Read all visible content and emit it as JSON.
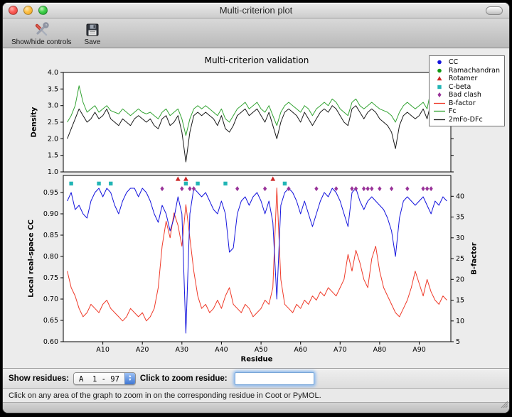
{
  "window": {
    "title": "Multi-criterion plot"
  },
  "toolbar": {
    "items": [
      {
        "label": "Show/hide controls",
        "icon": "tools-icon"
      },
      {
        "label": "Save",
        "icon": "save-icon"
      }
    ]
  },
  "chart_data": {
    "type": "line",
    "title": "Multi-criterion validation",
    "x": {
      "label": "Residue",
      "lim": [
        0,
        98
      ],
      "residue_range": [
        1,
        97
      ],
      "ticks": [
        {
          "v": 10,
          "t": "A10"
        },
        {
          "v": 20,
          "t": "A20"
        },
        {
          "v": 30,
          "t": "A30"
        },
        {
          "v": 40,
          "t": "A40"
        },
        {
          "v": 50,
          "t": "A50"
        },
        {
          "v": 60,
          "t": "A60"
        },
        {
          "v": 70,
          "t": "A70"
        },
        {
          "v": 80,
          "t": "A80"
        },
        {
          "v": 90,
          "t": "A90"
        }
      ]
    },
    "top": {
      "ylabel": "Density",
      "ylim": [
        1.0,
        4.0
      ],
      "yticks": [
        {
          "v": 1.0,
          "t": "1.0"
        },
        {
          "v": 1.5,
          "t": "1.5"
        },
        {
          "v": 2.0,
          "t": "2.0"
        },
        {
          "v": 2.5,
          "t": "2.5"
        },
        {
          "v": 3.0,
          "t": "3.0"
        },
        {
          "v": 3.5,
          "t": "3.5"
        },
        {
          "v": 4.0,
          "t": "4.0"
        }
      ],
      "series": [
        {
          "name": "Fc",
          "color": "#33a333",
          "values": [
            2.5,
            2.7,
            3.0,
            3.6,
            3.1,
            2.8,
            2.9,
            3.0,
            2.8,
            2.9,
            3.0,
            2.85,
            2.8,
            2.75,
            2.9,
            2.8,
            2.7,
            2.8,
            2.9,
            2.8,
            2.75,
            2.8,
            2.7,
            2.6,
            2.8,
            2.9,
            2.7,
            2.8,
            2.9,
            2.6,
            2.1,
            2.6,
            2.9,
            3.0,
            2.9,
            3.0,
            2.9,
            2.8,
            2.7,
            2.9,
            2.6,
            2.5,
            2.7,
            2.9,
            3.0,
            3.1,
            2.9,
            3.0,
            3.1,
            2.9,
            2.8,
            3.0,
            2.7,
            2.4,
            2.8,
            3.0,
            3.1,
            3.0,
            2.9,
            2.8,
            3.0,
            2.9,
            2.7,
            2.9,
            3.0,
            3.1,
            3.0,
            3.2,
            3.1,
            2.9,
            2.8,
            2.7,
            3.1,
            3.2,
            3.0,
            2.9,
            3.0,
            3.1,
            3.0,
            2.9,
            2.85,
            2.8,
            2.7,
            2.5,
            2.8,
            3.0,
            3.1,
            3.0,
            2.9,
            3.0,
            3.1,
            2.9,
            3.5,
            3.2,
            2.9,
            3.3,
            3.0
          ]
        },
        {
          "name": "2mFo-DFc",
          "color": "#1a1a1a",
          "values": [
            2.0,
            2.3,
            2.6,
            2.9,
            2.7,
            2.5,
            2.6,
            2.8,
            2.6,
            2.7,
            2.9,
            2.6,
            2.5,
            2.4,
            2.6,
            2.5,
            2.4,
            2.6,
            2.7,
            2.6,
            2.5,
            2.6,
            2.4,
            2.3,
            2.6,
            2.7,
            2.4,
            2.5,
            2.7,
            2.2,
            1.3,
            2.2,
            2.7,
            2.8,
            2.7,
            2.8,
            2.7,
            2.6,
            2.4,
            2.7,
            2.3,
            2.2,
            2.4,
            2.7,
            2.8,
            2.9,
            2.7,
            2.8,
            2.9,
            2.7,
            2.5,
            2.8,
            2.4,
            2.0,
            2.5,
            2.8,
            2.9,
            2.8,
            2.7,
            2.5,
            2.8,
            2.6,
            2.4,
            2.6,
            2.8,
            2.9,
            2.8,
            3.0,
            2.9,
            2.7,
            2.5,
            2.4,
            2.9,
            3.0,
            2.8,
            2.6,
            2.8,
            2.9,
            2.8,
            2.6,
            2.5,
            2.4,
            2.2,
            1.7,
            2.4,
            2.7,
            2.8,
            2.7,
            2.6,
            2.7,
            2.9,
            2.6,
            3.1,
            2.8,
            2.5,
            3.0,
            2.7
          ]
        }
      ]
    },
    "bottom": {
      "ylabel_left": "Local real-space CC",
      "cc_lim": [
        0.6,
        0.99
      ],
      "cc_ticks": [
        {
          "v": 0.6,
          "t": "0.60"
        },
        {
          "v": 0.65,
          "t": "0.65"
        },
        {
          "v": 0.7,
          "t": "0.70"
        },
        {
          "v": 0.75,
          "t": "0.75"
        },
        {
          "v": 0.8,
          "t": "0.80"
        },
        {
          "v": 0.85,
          "t": "0.85"
        },
        {
          "v": 0.9,
          "t": "0.90"
        },
        {
          "v": 0.95,
          "t": "0.95"
        }
      ],
      "ylabel_right": "B-factor",
      "b_lim": [
        5,
        45
      ],
      "b_ticks": [
        {
          "v": 5,
          "t": "5"
        },
        {
          "v": 10,
          "t": "10"
        },
        {
          "v": 15,
          "t": "15"
        },
        {
          "v": 20,
          "t": "20"
        },
        {
          "v": 25,
          "t": "25"
        },
        {
          "v": 30,
          "t": "30"
        },
        {
          "v": 35,
          "t": "35"
        },
        {
          "v": 40,
          "t": "40"
        }
      ],
      "series": [
        {
          "name": "B-factor",
          "axis": "right",
          "color": "#ef3b2a",
          "values": [
            22,
            18,
            16,
            13,
            11,
            12,
            14,
            13,
            12,
            14,
            15,
            13,
            12,
            11,
            10,
            11,
            13,
            12,
            11,
            12,
            10,
            11,
            13,
            18,
            28,
            34,
            30,
            36,
            33,
            28,
            38,
            30,
            22,
            16,
            13,
            14,
            12,
            13,
            15,
            13,
            16,
            18,
            14,
            13,
            12,
            14,
            13,
            11,
            12,
            13,
            15,
            14,
            18,
            42,
            20,
            14,
            13,
            12,
            14,
            13,
            15,
            14,
            16,
            15,
            17,
            16,
            18,
            17,
            16,
            18,
            20,
            26,
            22,
            27,
            24,
            20,
            18,
            25,
            28,
            22,
            18,
            16,
            14,
            12,
            11,
            13,
            15,
            18,
            22,
            19,
            16,
            20,
            17,
            15,
            14,
            16,
            15
          ]
        },
        {
          "name": "CC",
          "axis": "left",
          "color": "#1515dd",
          "values": [
            0.93,
            0.95,
            0.91,
            0.92,
            0.9,
            0.89,
            0.93,
            0.95,
            0.96,
            0.94,
            0.96,
            0.95,
            0.92,
            0.9,
            0.93,
            0.95,
            0.96,
            0.96,
            0.94,
            0.96,
            0.95,
            0.93,
            0.9,
            0.88,
            0.92,
            0.9,
            0.86,
            0.89,
            0.94,
            0.9,
            0.62,
            0.9,
            0.96,
            0.95,
            0.94,
            0.95,
            0.93,
            0.91,
            0.9,
            0.93,
            0.9,
            0.81,
            0.82,
            0.9,
            0.93,
            0.94,
            0.92,
            0.94,
            0.95,
            0.93,
            0.9,
            0.93,
            0.88,
            0.7,
            0.92,
            0.95,
            0.96,
            0.95,
            0.93,
            0.9,
            0.93,
            0.9,
            0.87,
            0.9,
            0.93,
            0.95,
            0.94,
            0.96,
            0.95,
            0.93,
            0.9,
            0.87,
            0.95,
            0.96,
            0.93,
            0.91,
            0.93,
            0.94,
            0.93,
            0.92,
            0.91,
            0.89,
            0.86,
            0.8,
            0.89,
            0.93,
            0.94,
            0.93,
            0.92,
            0.93,
            0.94,
            0.92,
            0.9,
            0.93,
            0.92,
            0.94,
            0.93
          ]
        }
      ],
      "markers": [
        {
          "name": "Ramachandran",
          "shape": "circle",
          "color": "#119911",
          "y": 0.982,
          "residues": []
        },
        {
          "name": "Rotamer",
          "shape": "triangle",
          "color": "#cc2525",
          "y": 0.982,
          "residues": [
            29,
            31,
            53
          ]
        },
        {
          "name": "C-beta",
          "shape": "square",
          "color": "#22b5b5",
          "y": 0.971,
          "residues": [
            2,
            9,
            12,
            31,
            34,
            41,
            56
          ]
        },
        {
          "name": "Bad clash",
          "shape": "diamond",
          "color": "#993399",
          "y": 0.959,
          "residues": [
            25,
            30,
            32,
            33,
            44,
            51,
            57,
            64,
            69,
            73,
            74,
            76,
            77,
            78,
            80,
            83,
            87,
            91,
            92,
            93
          ]
        }
      ]
    },
    "legend": [
      {
        "label": "CC",
        "shape": "circle",
        "color": "#1515dd"
      },
      {
        "label": "Ramachandran",
        "shape": "circle",
        "color": "#119911"
      },
      {
        "label": "Rotamer",
        "shape": "triangle",
        "color": "#cc2525"
      },
      {
        "label": "C-beta",
        "shape": "square",
        "color": "#22b5b5"
      },
      {
        "label": "Bad clash",
        "shape": "diamond",
        "color": "#993399"
      },
      {
        "label": "B-factor",
        "shape": "line",
        "color": "#ef3b2a"
      },
      {
        "label": "Fc",
        "shape": "line",
        "color": "#33a333"
      },
      {
        "label": "2mFo-DFc",
        "shape": "line",
        "color": "#1a1a1a"
      }
    ]
  },
  "controls": {
    "show_residues_label": "Show residues:",
    "residues_value": "A  1 - 97",
    "zoom_label": "Click to zoom residue:",
    "zoom_value": ""
  },
  "status_bar": {
    "text": "Click on any area of the graph to zoom in on the corresponding residue in Coot or PyMOL."
  }
}
